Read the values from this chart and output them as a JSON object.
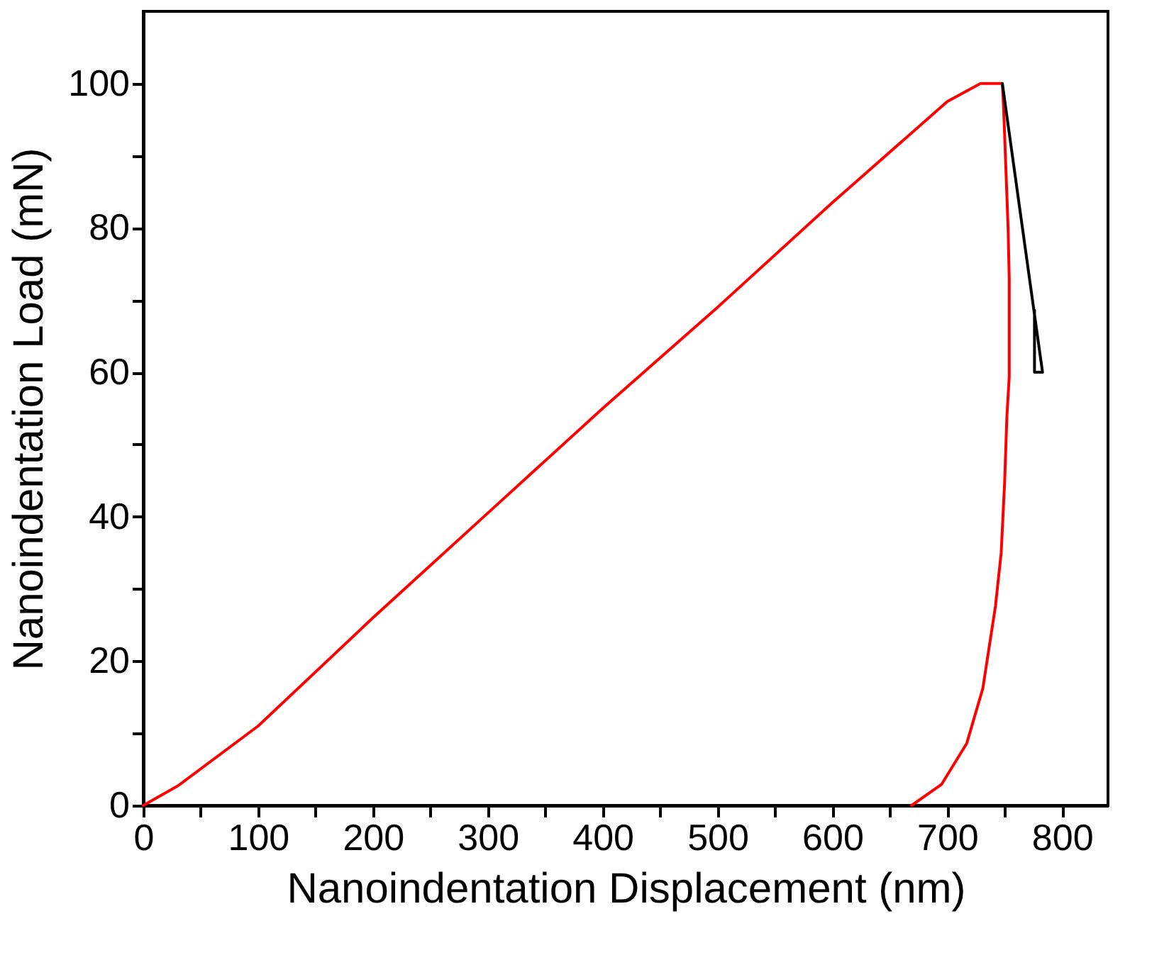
{
  "chart_data": {
    "type": "line",
    "xlabel": "Nanoindentation Displacement (nm)",
    "ylabel": "Nanoindentation Load (mN)",
    "xlim": [
      0,
      840
    ],
    "ylim": [
      0,
      110
    ],
    "xticks": [
      0,
      {
        "value": 50,
        "label": null
      },
      100,
      {
        "value": 150,
        "label": null
      },
      200,
      {
        "value": 250,
        "label": null
      },
      300,
      {
        "value": 350,
        "label": null
      },
      400,
      {
        "value": 450,
        "label": null
      },
      500,
      {
        "value": 550,
        "label": null
      },
      600,
      {
        "value": 650,
        "label": null
      },
      700,
      {
        "value": 750,
        "label": null
      },
      800
    ],
    "yticks": [
      0,
      {
        "value": 10,
        "label": null
      },
      20,
      {
        "value": 30,
        "label": null
      },
      40,
      {
        "value": 50,
        "label": null
      },
      60,
      {
        "value": 70,
        "label": null
      },
      80,
      {
        "value": 90,
        "label": null
      },
      100
    ],
    "grid": false,
    "legend": false,
    "line_style": "solid",
    "marker": "none",
    "series": [
      {
        "color": "#ff0000",
        "x": [
          0,
          30,
          100,
          200,
          300,
          400,
          500,
          600,
          700,
          729,
          748,
          749,
          751,
          753,
          754,
          754,
          752,
          750,
          747,
          742,
          731,
          717,
          695,
          669
        ],
        "values": [
          0,
          2.7,
          11,
          26,
          40.5,
          55,
          69,
          83.5,
          97.5,
          100,
          100,
          97,
          88.6,
          80,
          73,
          59.4,
          54,
          44.8,
          35,
          27.6,
          16.2,
          8.6,
          2.9,
          0
        ]
      },
      {
        "color": "#000000",
        "x": [
          748,
          783,
          776,
          776
        ],
        "values": [
          100,
          60,
          60,
          68.6
        ]
      }
    ]
  }
}
